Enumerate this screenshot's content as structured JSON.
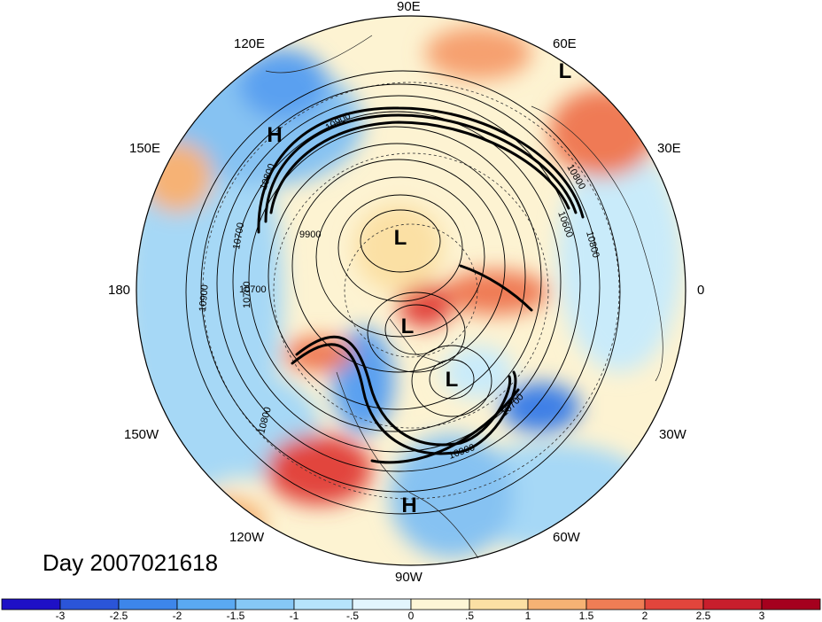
{
  "title": "Day 2007021618",
  "longitude_labels": [
    "90E",
    "120E",
    "60E",
    "150E",
    "30E",
    "180",
    "0",
    "150W",
    "30W",
    "120W",
    "60W",
    "90W"
  ],
  "system_markers": [
    "H",
    "L",
    "L",
    "L",
    "L",
    "H"
  ],
  "contour_labels": [
    "10900",
    "10800",
    "10700",
    "10800",
    "10600",
    "10800",
    "9900",
    "10700",
    "10700",
    "10900",
    "10800",
    "10700",
    "10900"
  ],
  "colorbar": {
    "ticks": [
      "-3",
      "-2.5",
      "-2",
      "-1.5",
      "-1",
      "-.5",
      "0",
      ".5",
      "1",
      "1.5",
      "2",
      "2.5",
      "3"
    ],
    "colors": [
      "#1e10c6",
      "#2b55d8",
      "#3d86ea",
      "#5aa9f2",
      "#86c8f6",
      "#b6e4fb",
      "#e2f5fd",
      "#fdf6d6",
      "#fbe0a4",
      "#f6b274",
      "#ef7d55",
      "#e2453c",
      "#c81e2c",
      "#a5001e"
    ]
  }
}
